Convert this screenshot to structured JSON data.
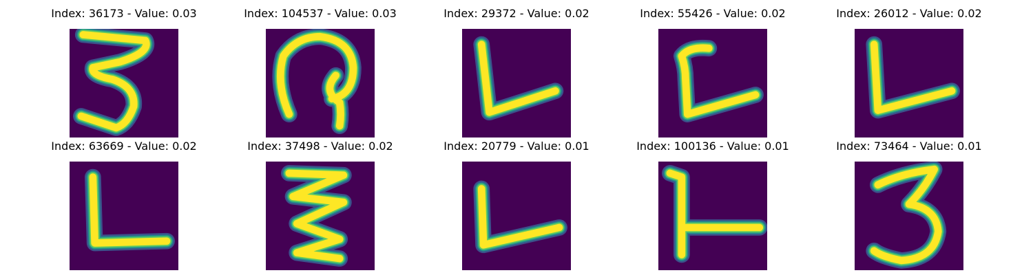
{
  "colors": {
    "background": "#440154",
    "stroke_core": "#fde725",
    "stroke_mid": "#5ec962",
    "stroke_edge": "#21918c",
    "stroke_halo": "#3b528b"
  },
  "panels": [
    {
      "title": "Index: 36173 - Value: 0.03",
      "glyph": "3",
      "description": "handwritten three with flat top stroke"
    },
    {
      "title": "Index: 104537 - Value: 0.03",
      "glyph": "loop",
      "description": "handwritten loop glyph"
    },
    {
      "title": "Index: 29372 - Value: 0.02",
      "glyph": "L",
      "description": "handwritten L"
    },
    {
      "title": "Index: 55426 - Value: 0.02",
      "glyph": "L",
      "description": "handwritten L with hooked top"
    },
    {
      "title": "Index: 26012 - Value: 0.02",
      "glyph": "L",
      "description": "handwritten L"
    },
    {
      "title": "Index: 63669 - Value: 0.02",
      "glyph": "L",
      "description": "handwritten L"
    },
    {
      "title": "Index: 37498 - Value: 0.02",
      "glyph": "3",
      "description": "handwritten zigzag three"
    },
    {
      "title": "Index: 20779 - Value: 0.01",
      "glyph": "L",
      "description": "handwritten L"
    },
    {
      "title": "Index: 100136 - Value: 0.01",
      "glyph": "L",
      "description": "handwritten L with long base"
    },
    {
      "title": "Index: 73464 - Value: 0.01",
      "glyph": "3",
      "description": "handwritten three"
    }
  ]
}
